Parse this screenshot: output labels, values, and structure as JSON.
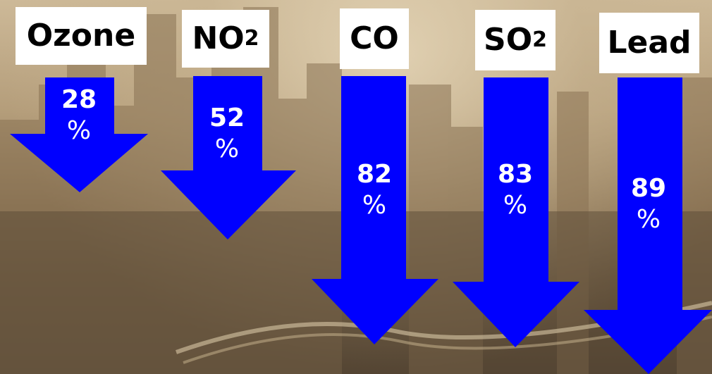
{
  "background": {
    "description_icon": "hazy-city-skyline-image",
    "tone": "#b49d7a"
  },
  "accent_color": "#0000ff",
  "pollutants": [
    {
      "key": "ozone",
      "label": "Ozone",
      "sub": "",
      "value": "28",
      "unit": "%"
    },
    {
      "key": "no2",
      "label": "NO",
      "sub": "2",
      "value": "52",
      "unit": "%"
    },
    {
      "key": "co",
      "label": "CO",
      "sub": "",
      "value": "82",
      "unit": "%"
    },
    {
      "key": "so2",
      "label": "SO",
      "sub": "2",
      "value": "83",
      "unit": "%"
    },
    {
      "key": "lead",
      "label": "Lead",
      "sub": "",
      "value": "89",
      "unit": "%"
    }
  ]
}
